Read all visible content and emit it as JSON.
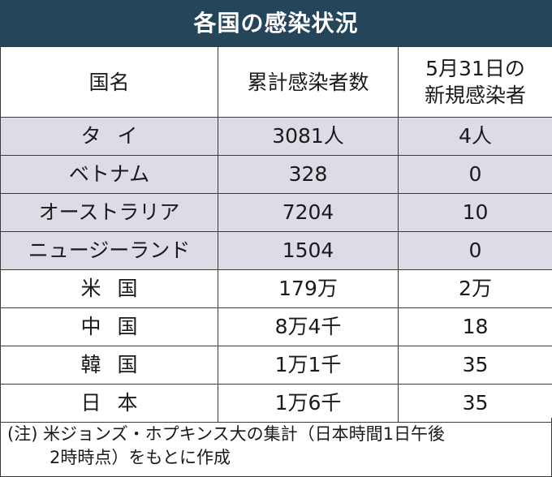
{
  "title": "各国の感染状況",
  "table": {
    "headers": [
      "国名",
      "累計感染者数",
      "5月31日の\n新規感染者"
    ],
    "header_col3_line1": "5月31日の",
    "header_col3_line2": "新規感染者",
    "rows": [
      {
        "country": "タイ",
        "total": "3081人",
        "new": "4人",
        "shaded": true
      },
      {
        "country": "ベトナム",
        "total": "328",
        "new": "0",
        "shaded": true
      },
      {
        "country": "オーストラリア",
        "total": "7204",
        "new": "10",
        "shaded": true
      },
      {
        "country": "ニュージーランド",
        "total": "1504",
        "new": "0",
        "shaded": true
      },
      {
        "country": "米国",
        "total": "179万",
        "new": "2万",
        "shaded": false
      },
      {
        "country": "中国",
        "total": "8万4千",
        "new": "18",
        "shaded": false
      },
      {
        "country": "韓国",
        "total": "1万1千",
        "new": "35",
        "shaded": false
      },
      {
        "country": "日本",
        "total": "1万6千",
        "new": "35",
        "shaded": false
      }
    ]
  },
  "note": {
    "line1": "(注) 米ジョンズ・ホプキンス大の集計（日本時間1日午後",
    "line2": "2時時点）をもとに作成"
  },
  "colors": {
    "title_bg": "#25455a",
    "shaded_row": "#dcdce6"
  }
}
